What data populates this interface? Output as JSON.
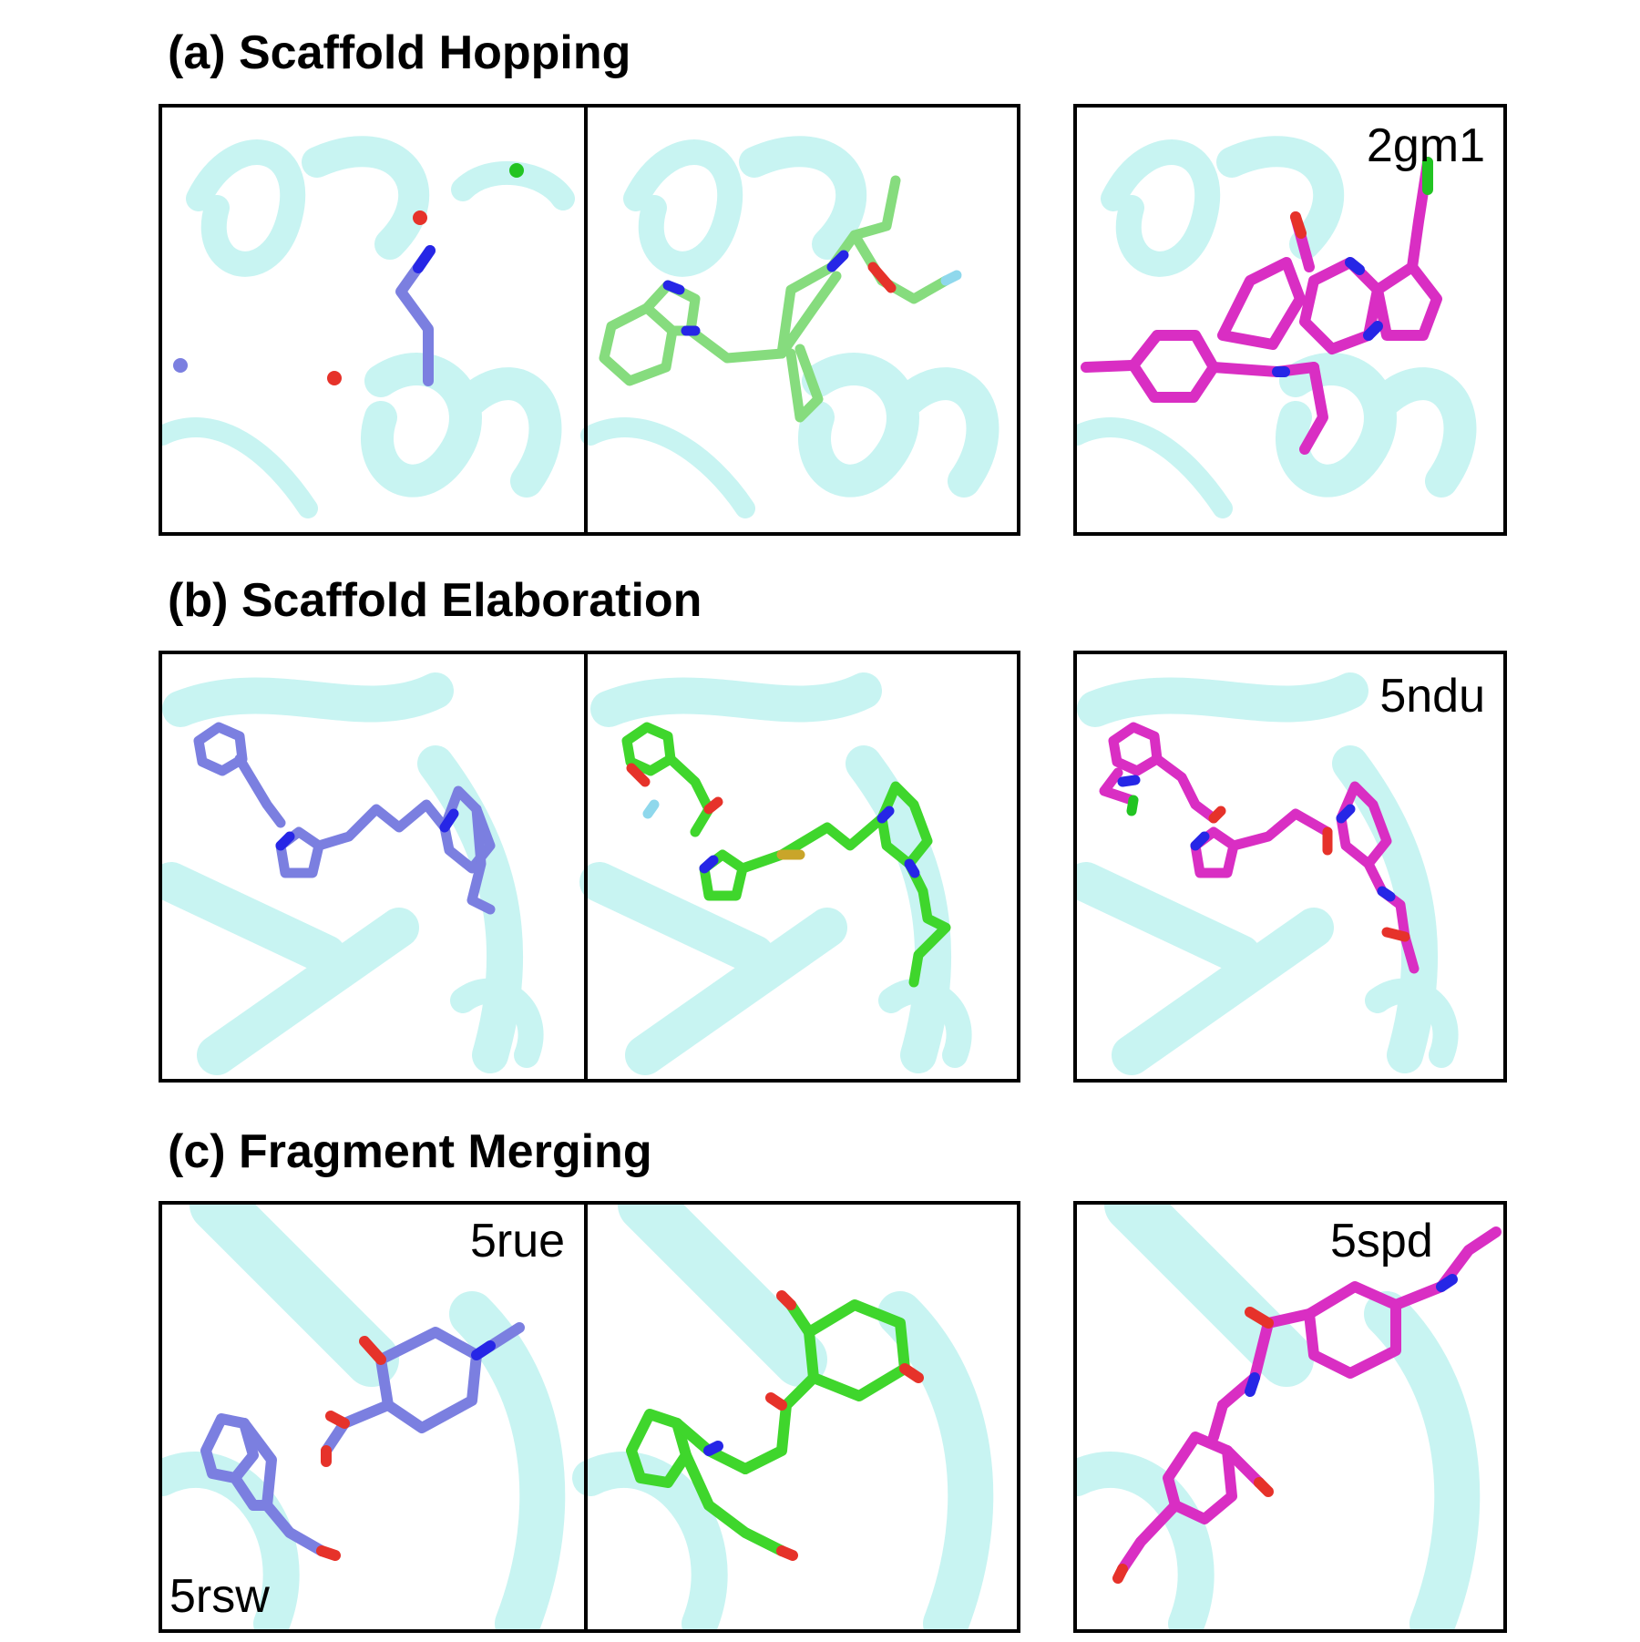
{
  "sections": [
    {
      "title": "(a) Scaffold Hopping",
      "reference_label": "2gm1"
    },
    {
      "title": "(b) Scaffold Elaboration",
      "reference_label": "5ndu"
    },
    {
      "title": "(c) Fragment Merging",
      "reference_label": "5spd",
      "fragment_labels": {
        "top": "5rue",
        "bottom": "5rsw"
      }
    }
  ],
  "colors": {
    "protein": "#c8f4f2",
    "protein_edge": "#9fe6e2",
    "fragment": "#7b7fe0",
    "generated_a": "#86dc7e",
    "generated": "#3fd62c",
    "reference": "#d92ec3",
    "nitrogen": "#2626e6",
    "oxygen": "#e6322a",
    "chlorine": "#22c422",
    "fluorine": "#8fd8ec",
    "sulfur": "#c9a52a"
  }
}
